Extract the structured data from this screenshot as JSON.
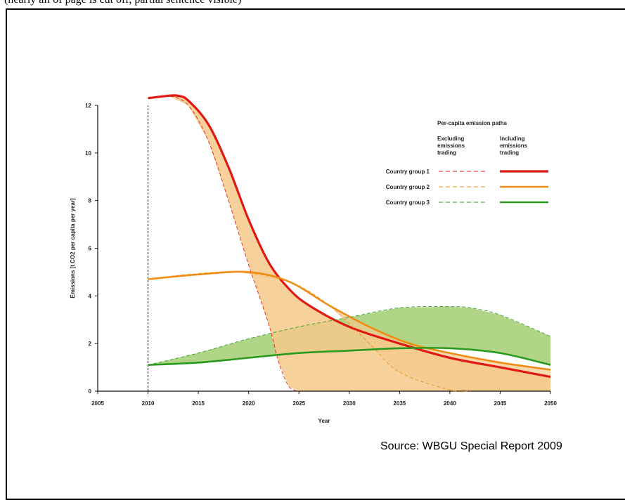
{
  "header_fragment": "(nearly all of page is cut off, partial sentence visible)",
  "source_text": "Source: WBGU Special Report 2009",
  "colors": {
    "group1": "#e01a13",
    "group2": "#f08c13",
    "group3": "#2a9a1e",
    "fill_orange": "#f5c98a",
    "fill_green": "#a9d07a",
    "fill_overlap": "#c9b48a"
  },
  "chart_data": {
    "type": "line",
    "title": "",
    "xlabel": "Year",
    "ylabel": "Emissions [t CO2 per capita per year]",
    "xlim": [
      2005,
      2050
    ],
    "ylim": [
      0,
      12
    ],
    "x_ticks": [
      "2005",
      "2010",
      "2015",
      "2020",
      "2025",
      "2030",
      "2035",
      "2040",
      "2045",
      "2050"
    ],
    "y_ticks": [
      "0",
      "2",
      "4",
      "6",
      "8",
      "10",
      "12"
    ],
    "reference_line_x": 2010,
    "legend": {
      "title": "Per-capita emission paths",
      "col_excluding": "Excluding emissions trading",
      "col_including": "Including emissions trading",
      "position": "top-right"
    },
    "series": [
      {
        "name": "Country group 1",
        "type": "excluding trading",
        "style": "dashed",
        "points": [
          [
            2010,
            12.3
          ],
          [
            2012,
            12.4
          ],
          [
            2014,
            12.0
          ],
          [
            2016,
            10.5
          ],
          [
            2018,
            8.0
          ],
          [
            2020,
            5.3
          ],
          [
            2022,
            2.8
          ],
          [
            2023,
            1.2
          ],
          [
            2024,
            0.2
          ],
          [
            2025,
            0
          ]
        ]
      },
      {
        "name": "Country group 1",
        "type": "including trading",
        "style": "solid",
        "points": [
          [
            2010,
            12.3
          ],
          [
            2012,
            12.4
          ],
          [
            2013,
            12.4
          ],
          [
            2014,
            12.2
          ],
          [
            2016,
            11.2
          ],
          [
            2018,
            9.4
          ],
          [
            2020,
            7.2
          ],
          [
            2022,
            5.4
          ],
          [
            2024,
            4.3
          ],
          [
            2026,
            3.6
          ],
          [
            2030,
            2.7
          ],
          [
            2035,
            2.0
          ],
          [
            2040,
            1.4
          ],
          [
            2045,
            1.0
          ],
          [
            2050,
            0.6
          ]
        ]
      },
      {
        "name": "Country group 2",
        "type": "excluding trading",
        "style": "dashed",
        "points": [
          [
            2010,
            4.7
          ],
          [
            2014,
            4.9
          ],
          [
            2019,
            5.0
          ],
          [
            2024,
            4.6
          ],
          [
            2028,
            3.6
          ],
          [
            2032,
            2.0
          ],
          [
            2035,
            0.8
          ],
          [
            2040,
            0.05
          ],
          [
            2042,
            0
          ]
        ]
      },
      {
        "name": "Country group 2",
        "type": "including trading",
        "style": "solid",
        "points": [
          [
            2010,
            4.7
          ],
          [
            2015,
            4.9
          ],
          [
            2020,
            5.0
          ],
          [
            2024,
            4.6
          ],
          [
            2028,
            3.6
          ],
          [
            2032,
            2.7
          ],
          [
            2036,
            2.0
          ],
          [
            2040,
            1.6
          ],
          [
            2045,
            1.2
          ],
          [
            2050,
            0.9
          ]
        ]
      },
      {
        "name": "Country group 3",
        "type": "excluding trading",
        "style": "dashed",
        "points": [
          [
            2010,
            1.1
          ],
          [
            2015,
            1.6
          ],
          [
            2020,
            2.2
          ],
          [
            2025,
            2.7
          ],
          [
            2030,
            3.1
          ],
          [
            2035,
            3.5
          ],
          [
            2040,
            3.55
          ],
          [
            2042,
            3.5
          ],
          [
            2045,
            3.2
          ],
          [
            2050,
            2.3
          ]
        ]
      },
      {
        "name": "Country group 3",
        "type": "including trading",
        "style": "solid",
        "points": [
          [
            2010,
            1.1
          ],
          [
            2015,
            1.2
          ],
          [
            2020,
            1.4
          ],
          [
            2025,
            1.6
          ],
          [
            2030,
            1.7
          ],
          [
            2035,
            1.8
          ],
          [
            2040,
            1.8
          ],
          [
            2045,
            1.6
          ],
          [
            2050,
            1.1
          ]
        ]
      }
    ]
  }
}
